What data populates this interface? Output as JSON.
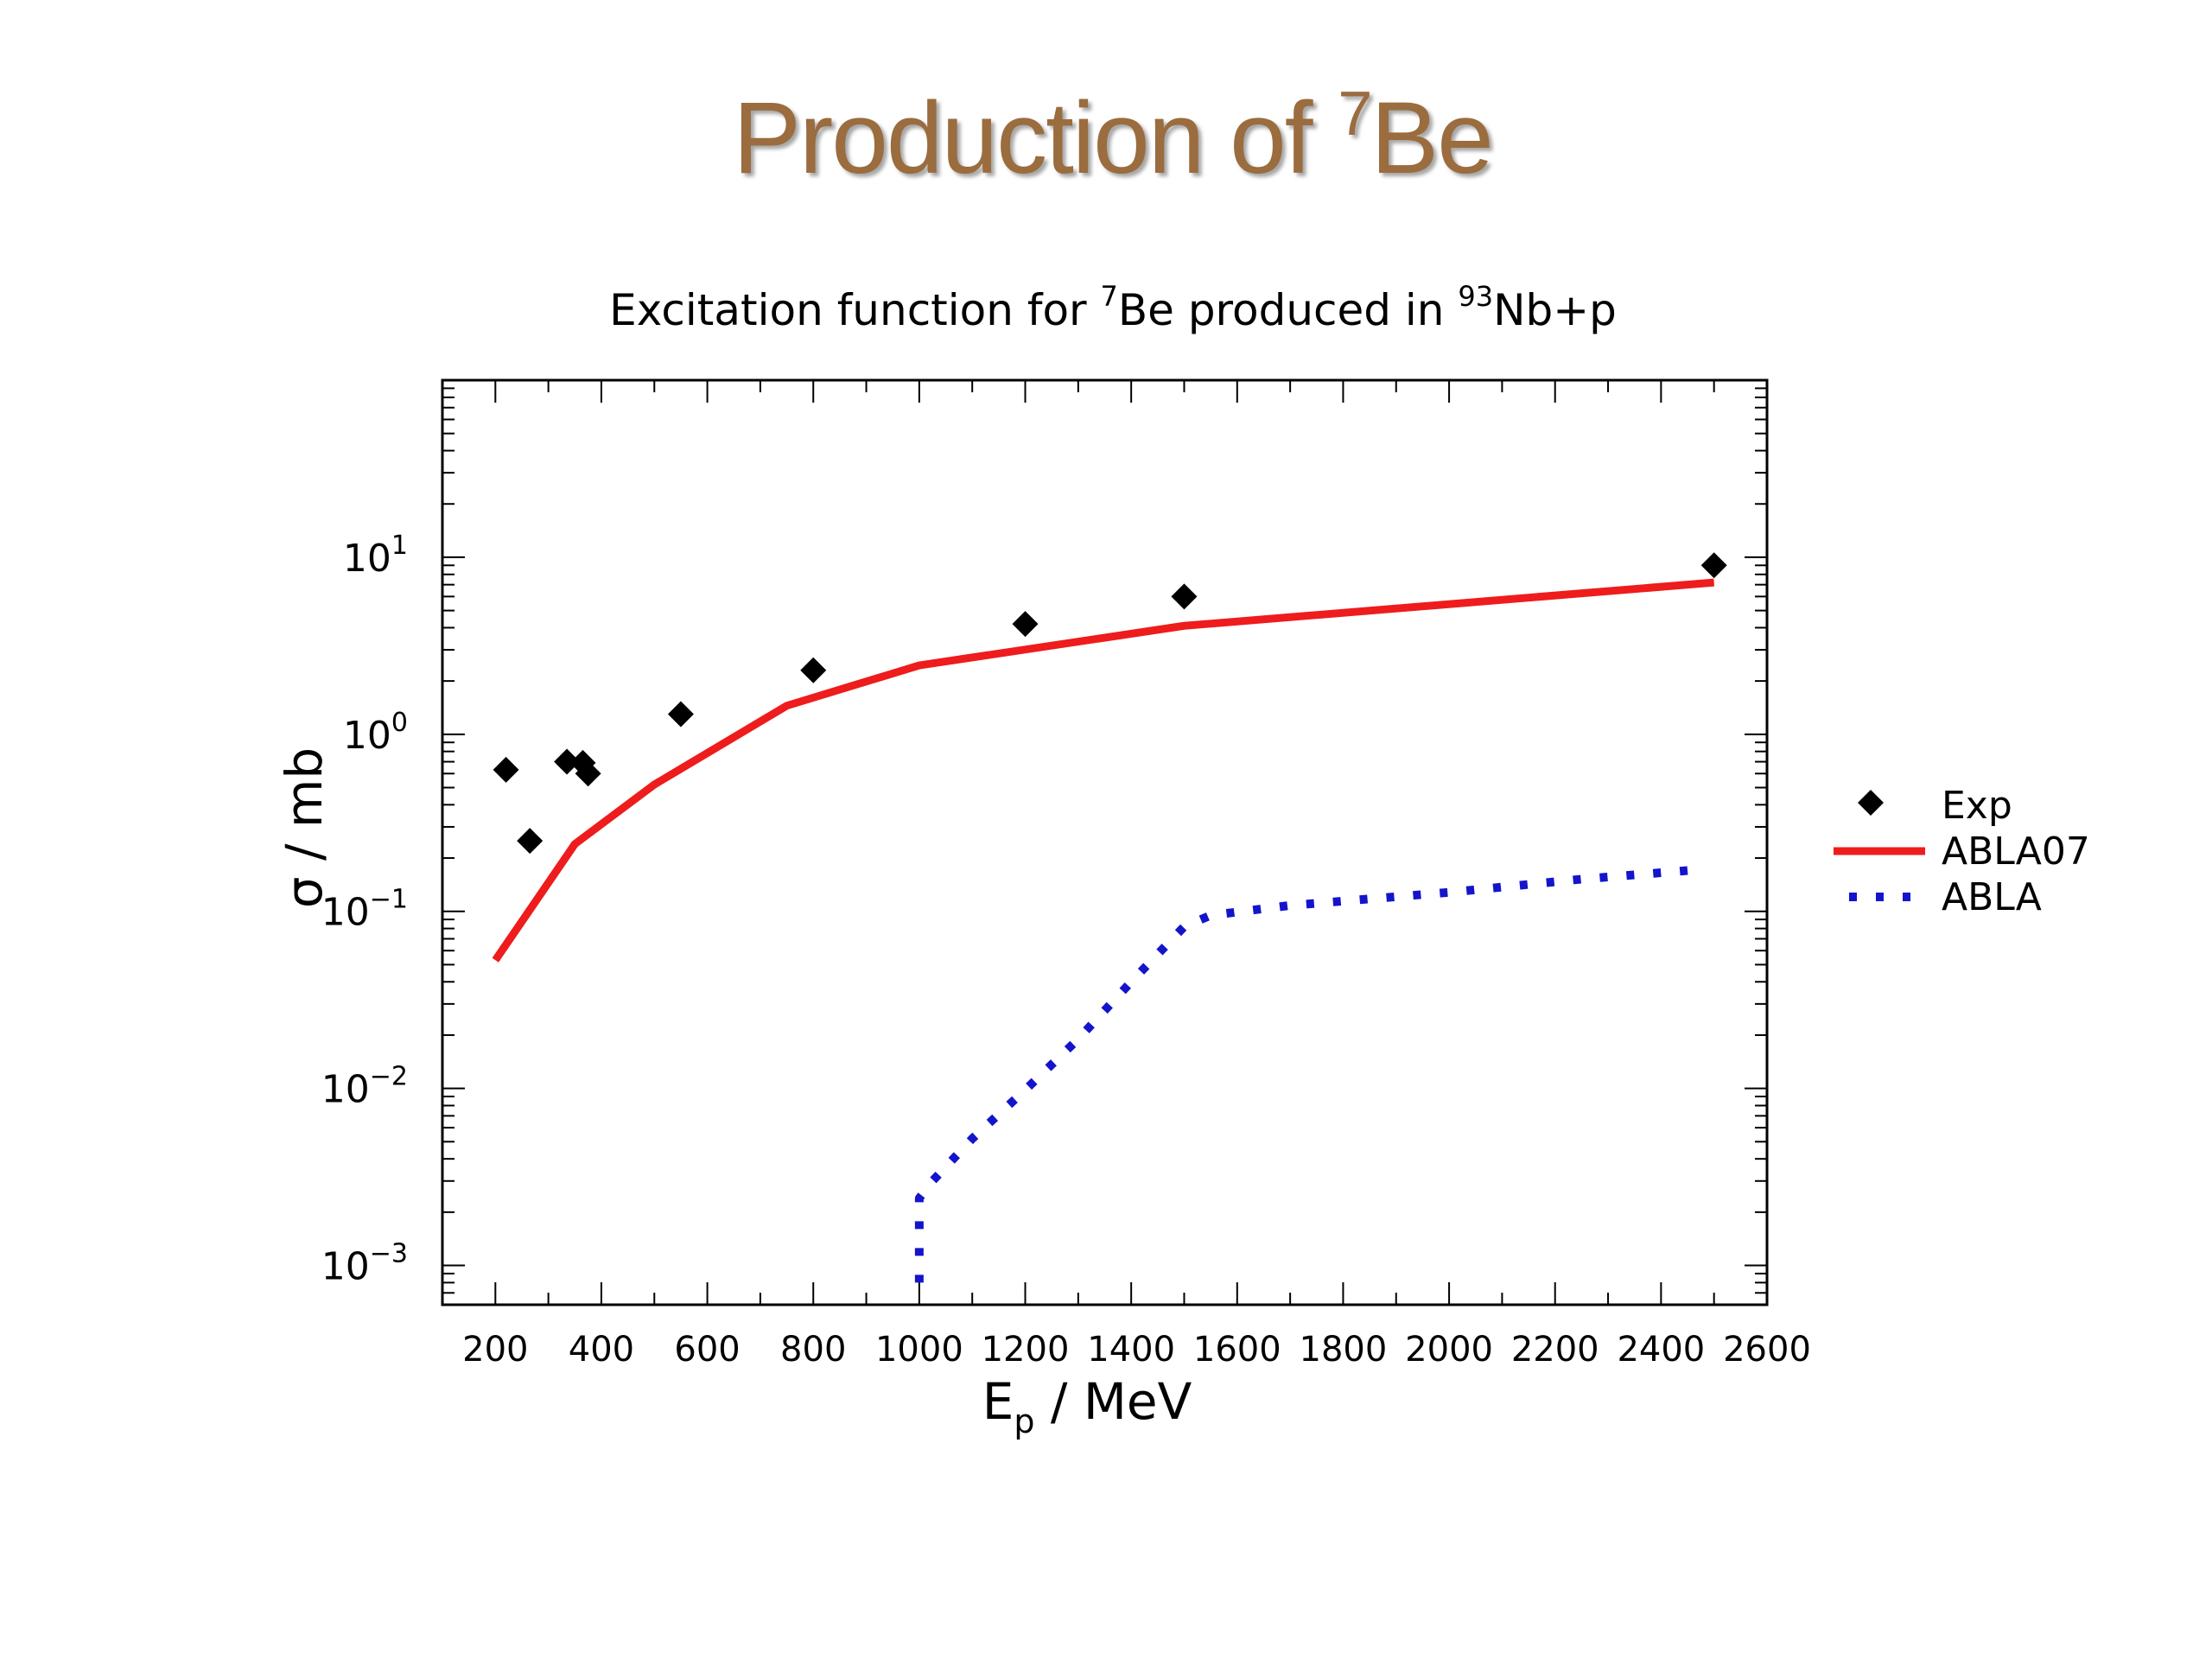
{
  "slide": {
    "title": "Production of ",
    "title_superscript": "7",
    "title_suffix": "Be"
  },
  "chart_data": {
    "type": "scatter",
    "title": {
      "prefix": "Excitation function for ",
      "sup1": "7",
      "mid": "Be produced in ",
      "sup2": "93",
      "suffix": "Nb+p"
    },
    "xlabel": {
      "main": "E",
      "sub": "p",
      "rest": " / MeV"
    },
    "ylabel": "σ / mb",
    "xlim": [
      100,
      2600
    ],
    "ylim": [
      0.0006,
      100
    ],
    "yscale": "log",
    "x_ticks": [
      200,
      400,
      600,
      800,
      1000,
      1200,
      1400,
      1600,
      1800,
      2000,
      2200,
      2400,
      2600
    ],
    "y_ticks": [
      {
        "value": 10,
        "base": "10",
        "exp": "1"
      },
      {
        "value": 1,
        "base": "10",
        "exp": "0"
      },
      {
        "value": 0.1,
        "base": "10",
        "exp": "−1"
      },
      {
        "value": 0.01,
        "base": "10",
        "exp": "−2"
      },
      {
        "value": 0.001,
        "base": "10",
        "exp": "−3"
      }
    ],
    "legend": {
      "position": "right"
    },
    "series": [
      {
        "name": "Exp",
        "kind": "markers",
        "marker": "diamond",
        "color": "#000000",
        "x": [
          220,
          265,
          335,
          365,
          375,
          550,
          800,
          1200,
          1500,
          2500
        ],
        "y": [
          0.63,
          0.25,
          0.7,
          0.69,
          0.6,
          1.3,
          2.3,
          4.2,
          6.0,
          9.0
        ]
      },
      {
        "name": "ABLA07",
        "kind": "line",
        "style": "solid",
        "color": "#ee1c1c",
        "x": [
          200,
          350,
          500,
          750,
          1000,
          1500,
          2500
        ],
        "y": [
          0.053,
          0.24,
          0.52,
          1.45,
          2.45,
          4.1,
          7.2
        ]
      },
      {
        "name": "ABLA",
        "kind": "line",
        "style": "dotted",
        "color": "#1414cc",
        "x": [
          1000,
          1000,
          1025,
          1100,
          1200,
          1300,
          1400,
          1500,
          1550,
          1700,
          2000,
          2250,
          2450
        ],
        "y": [
          0.0008,
          0.0024,
          0.003,
          0.0052,
          0.0098,
          0.019,
          0.04,
          0.082,
          0.095,
          0.108,
          0.128,
          0.152,
          0.17
        ]
      }
    ]
  }
}
